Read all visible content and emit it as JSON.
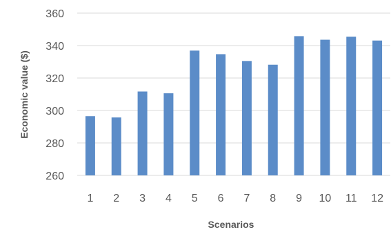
{
  "chart_data": {
    "type": "bar",
    "title": "",
    "xlabel": "Scenarios",
    "ylabel": "Economic value ($)",
    "categories": [
      "1",
      "2",
      "3",
      "4",
      "5",
      "6",
      "7",
      "8",
      "9",
      "10",
      "11",
      "12"
    ],
    "values": [
      296.5,
      295.7,
      311.7,
      310.6,
      336.9,
      334.7,
      330.5,
      328.2,
      345.8,
      343.6,
      345.5,
      343.1
    ],
    "ylim": [
      260,
      360
    ],
    "yticks": [
      "260",
      "280",
      "300",
      "320",
      "340",
      "360"
    ],
    "grid": true,
    "legend": "none",
    "colors": {
      "bar": "#5b8cc8",
      "grid": "#d9d9d9",
      "text": "#595959"
    }
  }
}
